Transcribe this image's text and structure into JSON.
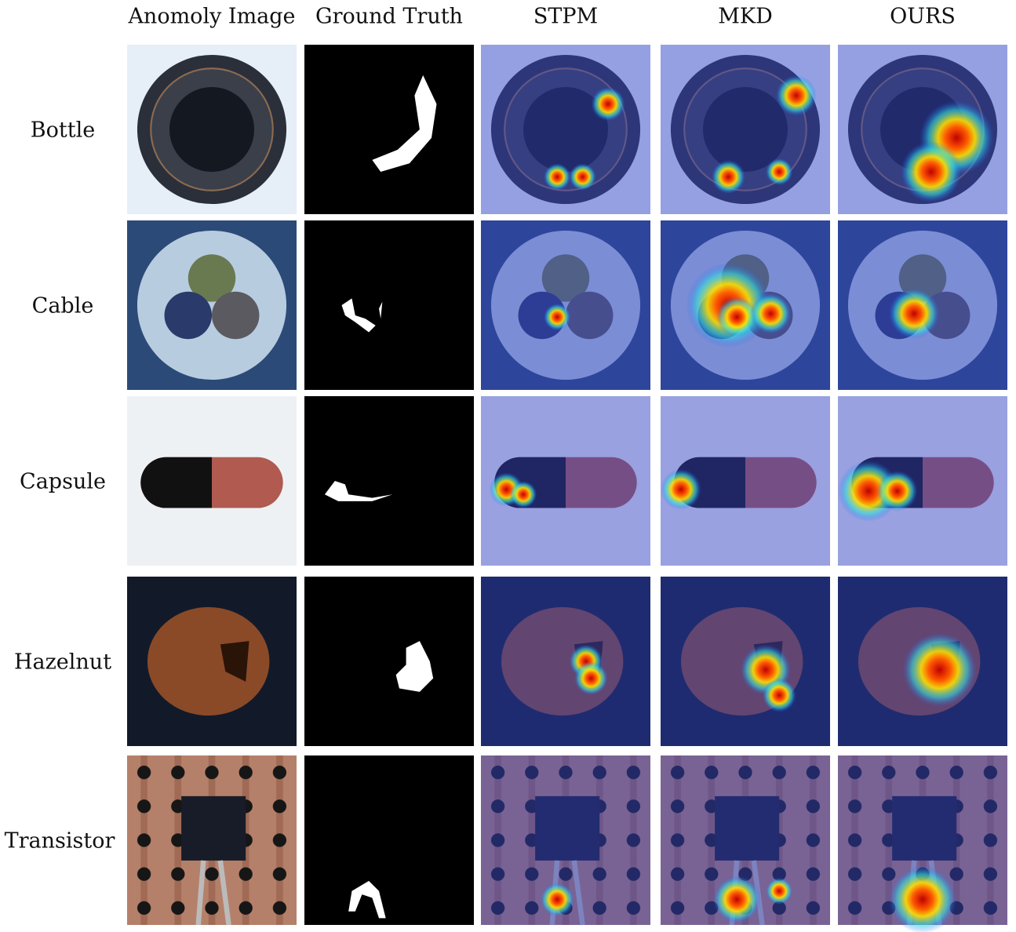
{
  "columns": [
    "Anomoly Image",
    "Ground Truth",
    "STPM",
    "MKD",
    "OURS"
  ],
  "rows": [
    "Bottle",
    "Cable",
    "Capsule",
    "Hazelnut",
    "Transistor"
  ]
}
